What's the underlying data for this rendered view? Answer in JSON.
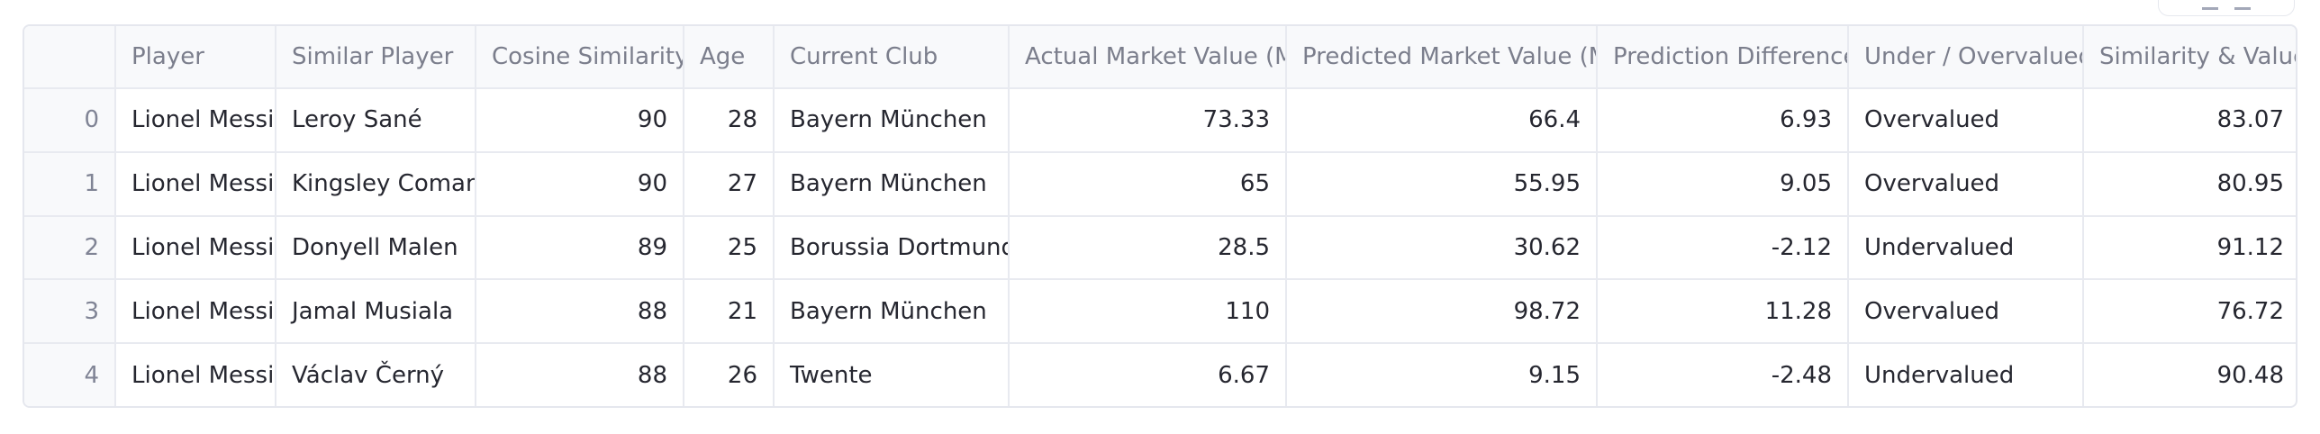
{
  "table": {
    "columns": [
      {
        "key": "index",
        "label": ""
      },
      {
        "key": "player",
        "label": "Player"
      },
      {
        "key": "similar_player",
        "label": "Similar Player"
      },
      {
        "key": "cosine_similarity",
        "label": "Cosine Similarity"
      },
      {
        "key": "age",
        "label": "Age"
      },
      {
        "key": "current_club",
        "label": "Current Club"
      },
      {
        "key": "actual_value",
        "label": "Actual Market Value (M)"
      },
      {
        "key": "predicted_value",
        "label": "Predicted Market Value (M)"
      },
      {
        "key": "prediction_difference",
        "label": "Prediction Difference"
      },
      {
        "key": "under_over",
        "label": "Under / Overvalued"
      },
      {
        "key": "similarity_value",
        "label": "Similarity & Value"
      }
    ],
    "rows": [
      {
        "index": "0",
        "player": "Lionel Messi",
        "similar_player": "Leroy Sané",
        "cosine_similarity": "90",
        "age": "28",
        "current_club": "Bayern München",
        "actual_value": "73.33",
        "predicted_value": "66.4",
        "prediction_difference": "6.93",
        "under_over": "Overvalued",
        "similarity_value": "83.07"
      },
      {
        "index": "1",
        "player": "Lionel Messi",
        "similar_player": "Kingsley Coman",
        "cosine_similarity": "90",
        "age": "27",
        "current_club": "Bayern München",
        "actual_value": "65",
        "predicted_value": "55.95",
        "prediction_difference": "9.05",
        "under_over": "Overvalued",
        "similarity_value": "80.95"
      },
      {
        "index": "2",
        "player": "Lionel Messi",
        "similar_player": "Donyell Malen",
        "cosine_similarity": "89",
        "age": "25",
        "current_club": "Borussia Dortmund",
        "actual_value": "28.5",
        "predicted_value": "30.62",
        "prediction_difference": "-2.12",
        "under_over": "Undervalued",
        "similarity_value": "91.12"
      },
      {
        "index": "3",
        "player": "Lionel Messi",
        "similar_player": "Jamal Musiala",
        "cosine_similarity": "88",
        "age": "21",
        "current_club": "Bayern München",
        "actual_value": "110",
        "predicted_value": "98.72",
        "prediction_difference": "11.28",
        "under_over": "Overvalued",
        "similarity_value": "76.72"
      },
      {
        "index": "4",
        "player": "Lionel Messi",
        "similar_player": "Václav Černý",
        "cosine_similarity": "88",
        "age": "26",
        "current_club": "Twente",
        "actual_value": "6.67",
        "predicted_value": "9.15",
        "prediction_difference": "-2.48",
        "under_over": "Undervalued",
        "similarity_value": "90.48"
      }
    ]
  },
  "toolbar": {
    "icons": [
      "download-icon",
      "search-icon",
      "fullscreen-icon"
    ]
  }
}
